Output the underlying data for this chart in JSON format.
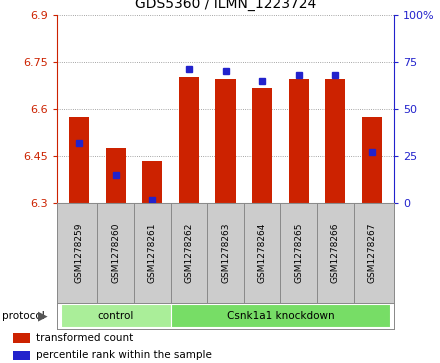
{
  "title": "GDS5360 / ILMN_1223724",
  "samples": [
    "GSM1278259",
    "GSM1278260",
    "GSM1278261",
    "GSM1278262",
    "GSM1278263",
    "GSM1278264",
    "GSM1278265",
    "GSM1278266",
    "GSM1278267"
  ],
  "bar_values": [
    6.575,
    6.475,
    6.435,
    6.7,
    6.695,
    6.665,
    6.695,
    6.695,
    6.575
  ],
  "percentile_values": [
    32,
    15,
    2,
    71,
    70,
    65,
    68,
    68,
    27
  ],
  "ylim_left": [
    6.3,
    6.9
  ],
  "ylim_right": [
    0,
    100
  ],
  "yticks_left": [
    6.3,
    6.45,
    6.6,
    6.75,
    6.9
  ],
  "yticks_right": [
    0,
    25,
    50,
    75,
    100
  ],
  "ytick_labels_left": [
    "6.3",
    "6.45",
    "6.6",
    "6.75",
    "6.9"
  ],
  "ytick_labels_right": [
    "0",
    "25",
    "50",
    "75",
    "100%"
  ],
  "bar_color": "#cc2200",
  "dot_color": "#2222cc",
  "protocol_groups": [
    {
      "label": "control",
      "indices": [
        0,
        1,
        2
      ],
      "color": "#aaee99"
    },
    {
      "label": "Csnk1a1 knockdown",
      "indices": [
        3,
        4,
        5,
        6,
        7,
        8
      ],
      "color": "#77dd66"
    }
  ],
  "protocol_label": "protocol",
  "legend_items": [
    {
      "label": "transformed count",
      "color": "#cc2200"
    },
    {
      "label": "percentile rank within the sample",
      "color": "#2222cc"
    }
  ],
  "grid_linestyle": "dotted",
  "grid_color": "#888888",
  "bar_width": 0.55,
  "x_values": [
    0,
    1,
    2,
    3,
    4,
    5,
    6,
    7,
    8
  ],
  "cell_bg": "#cccccc",
  "spine_color": "#888888",
  "fig_bg": "#ffffff"
}
